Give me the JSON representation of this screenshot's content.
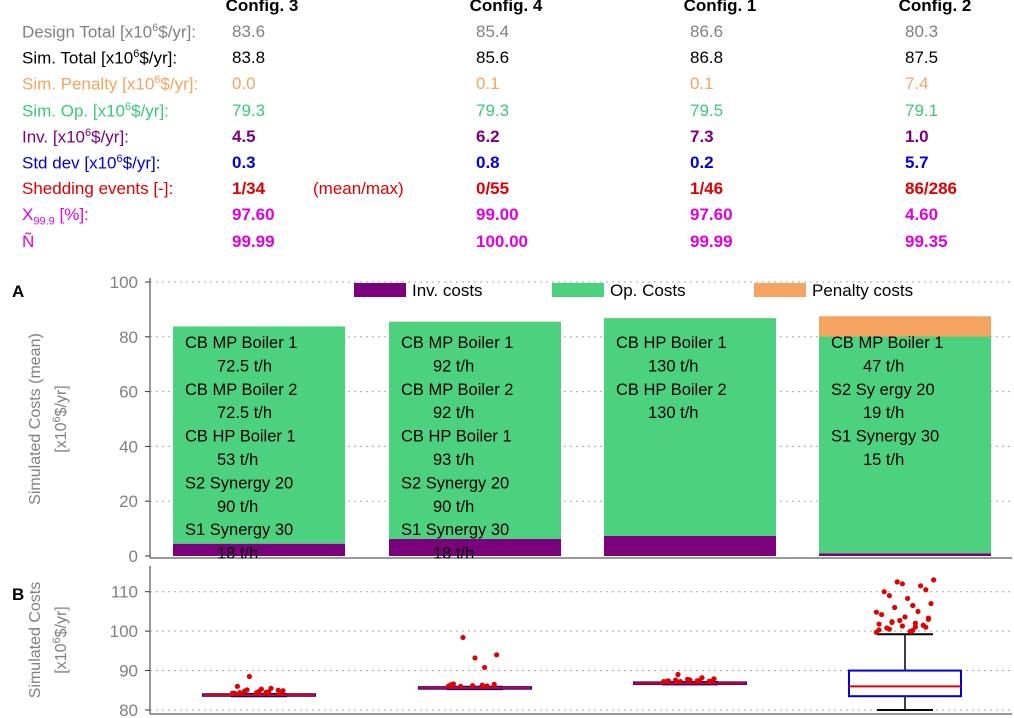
{
  "columns": [
    "Config. 3",
    "Config. 4",
    "Config. 1",
    "Config. 2"
  ],
  "rows": [
    {
      "label_pre": "Design Total [x10",
      "sup": "6",
      "label_post": "$/yr]:",
      "color": "#808080",
      "values": [
        "83.6",
        "85.4",
        "86.6",
        "80.3"
      ]
    },
    {
      "label_pre": "Sim. Total [x10",
      "sup": "6",
      "label_post": "$/yr]:",
      "color": "#000000",
      "values": [
        "83.8",
        "85.6",
        "86.8",
        "87.5"
      ]
    },
    {
      "label_pre": "Sim. Penalty [x10",
      "sup": "6",
      "label_post": "$/yr]:",
      "color": "#f4a460",
      "values": [
        "0.0",
        "0.1",
        "0.1",
        "7.4"
      ]
    },
    {
      "label_pre": "Sim. Op. [x10",
      "sup": "6",
      "label_post": "$/yr]:",
      "color": "#3cc878",
      "values": [
        "79.3",
        "79.3",
        "79.5",
        "79.1"
      ]
    },
    {
      "label_pre": "Inv. [x10",
      "sup": "6",
      "label_post": "$/yr]:",
      "color": "#7b007b",
      "values": [
        "4.5",
        "6.2",
        "7.3",
        "1.0"
      ]
    },
    {
      "label_pre": "Std dev [x10",
      "sup": "6",
      "label_post": "$/yr]:",
      "color": "#0000e0",
      "values": [
        "0.3",
        "0.8",
        "0.2",
        "5.7"
      ]
    },
    {
      "label_pre": "Shedding events [-]:",
      "sup": "",
      "label_post": "",
      "color": "#e00000",
      "values": [
        "1/34",
        "0/55",
        "1/46",
        "86/286"
      ],
      "note": "(mean/max)"
    },
    {
      "label_pre": "X",
      "sub": "99.9",
      "label_post": " [%]:",
      "color": "#e000e0",
      "values": [
        "97.60",
        "99.00",
        "97.60",
        "4.60"
      ]
    },
    {
      "label_pre": "Ñ",
      "label_post": "",
      "color": "#e000e0",
      "values": [
        "99.99",
        "100.00",
        "99.99",
        "99.35"
      ]
    }
  ],
  "chart_data": [
    {
      "type": "bar",
      "panel_label": "A",
      "stacked": true,
      "categories": [
        "Config. 3",
        "Config. 4",
        "Config. 1",
        "Config. 2"
      ],
      "ylabel_line1": "Simulated Costs (mean)",
      "ylabel_line2_pre": "[x10",
      "ylabel_sup": "6",
      "ylabel_line2_post": "$/yr]",
      "ylim": [
        0,
        100
      ],
      "yticks": [
        0,
        20,
        40,
        60,
        80,
        100
      ],
      "grid": true,
      "legend_position": "top-center",
      "series": [
        {
          "name": "Inv. costs",
          "color": "#7b007b",
          "values": [
            4.5,
            6.2,
            7.3,
            1.0
          ]
        },
        {
          "name": "Op. Costs",
          "color": "#4cd17f",
          "values": [
            79.3,
            79.3,
            79.5,
            79.1
          ]
        },
        {
          "name": "Penalty costs",
          "color": "#f4a460",
          "values": [
            0.0,
            0.1,
            0.1,
            7.4
          ]
        }
      ],
      "bar_annotations": [
        [
          "CB MP Boiler 1",
          "72.5 t/h",
          "CB MP Boiler 2",
          "72.5 t/h",
          "CB HP Boiler 1",
          "53 t/h",
          "S2 Synergy 20",
          "90 t/h",
          "S1 Synergy 30",
          "18 t/h"
        ],
        [
          "CB MP Boiler 1",
          "92 t/h",
          "CB MP Boiler 2",
          "92 t/h",
          "CB HP Boiler 1",
          "93 t/h",
          "S2 Synergy 20",
          "90 t/h",
          "S1 Synergy 30",
          "18 t/h"
        ],
        [
          "CB HP Boiler 1",
          "130 t/h",
          "CB HP Boiler 2",
          "130 t/h"
        ],
        [
          "CB MP Boiler 1",
          "47 t/h",
          "S2 Sy ergy 20",
          "19 t/h",
          "S1 Synergy 30",
          "15 t/h"
        ]
      ]
    },
    {
      "type": "box",
      "panel_label": "B",
      "categories": [
        "Config. 3",
        "Config. 4",
        "Config. 1",
        "Config. 2"
      ],
      "ylabel_line1": "Simulated Costs",
      "ylabel_line2_pre": "[x10",
      "ylabel_sup": "6",
      "ylabel_line2_post": "$/yr]",
      "ylim": [
        80,
        115
      ],
      "yticks": [
        80,
        90,
        100,
        110
      ],
      "grid": true,
      "box_color": "#0000e0",
      "median_color": "#e00000",
      "outlier_color": "#e00000",
      "boxes": [
        {
          "q1": 83.6,
          "median": 83.8,
          "q3": 84.0,
          "whisker_low": 83.5,
          "whisker_high": 84.1,
          "outliers": [
            84.3,
            84.5,
            84.8,
            85.0,
            84.4,
            84.2,
            84.6,
            85.1,
            84.3,
            84.7,
            86.0,
            85.5,
            88.5,
            84.9,
            85.3,
            84.4
          ]
        },
        {
          "q1": 85.4,
          "median": 85.6,
          "q3": 85.8,
          "whisker_low": 85.3,
          "whisker_high": 85.9,
          "outliers": [
            86.1,
            86.3,
            86.0,
            86.5,
            86.2,
            86.4,
            90.8,
            98.4,
            94.0,
            93.2,
            86.6,
            86.1
          ]
        },
        {
          "q1": 86.6,
          "median": 86.8,
          "q3": 87.0,
          "whisker_low": 86.5,
          "whisker_high": 87.1,
          "outliers": [
            87.2,
            87.4,
            87.6,
            87.3,
            87.8,
            87.2,
            87.5,
            89.0,
            87.3,
            87.6,
            87.4,
            88.2,
            87.2,
            87.9
          ]
        },
        {
          "q1": 83.5,
          "median": 86.0,
          "q3": 90.0,
          "whisker_low": 80.0,
          "whisker_high": 99.2,
          "outliers": [
            99.7,
            100.2,
            100.5,
            101.0,
            101.3,
            101.8,
            102.0,
            102.4,
            103.0,
            103.6,
            104.2,
            105.0,
            106.0,
            107.0,
            108.3,
            110.0,
            111.5,
            112.5,
            113.0,
            99.9,
            100.8,
            101.5,
            102.7,
            104.8,
            106.5,
            109.0,
            110.5,
            112.0,
            100.3,
            101.1,
            102.2,
            103.3
          ]
        }
      ]
    }
  ]
}
